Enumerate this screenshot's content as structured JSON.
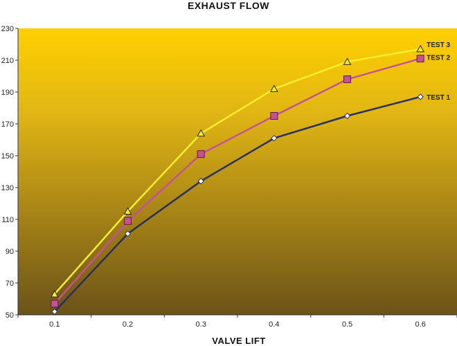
{
  "chart_data": {
    "type": "line",
    "title": "EXHAUST FLOW",
    "xlabel": "VALVE LIFT",
    "ylabel": "",
    "x": [
      0.1,
      0.2,
      0.3,
      0.4,
      0.5,
      0.6
    ],
    "x_ticks": [
      "0.1",
      "0.2",
      "0.3",
      "0.4",
      "0.5",
      "0.6"
    ],
    "ylim": [
      50,
      230
    ],
    "y_ticks": [
      "50",
      "70",
      "90",
      "110",
      "130",
      "150",
      "170",
      "190",
      "210",
      "230"
    ],
    "grid": false,
    "legend": "labels at line ends",
    "series": [
      {
        "name": "TEST 1",
        "values": [
          52,
          101,
          134,
          161,
          175,
          187
        ],
        "color": "#27305a",
        "marker": "diamond"
      },
      {
        "name": "TEST 2",
        "values": [
          57,
          109,
          151,
          175,
          198,
          211
        ],
        "color": "#c5519a",
        "marker": "square"
      },
      {
        "name": "TEST 3",
        "values": [
          63,
          115,
          164,
          192,
          209,
          217
        ],
        "color": "#f6ef2e",
        "marker": "triangle"
      }
    ],
    "colors": {
      "plot_top": "#ffd000",
      "plot_mid": "#e0b514",
      "plot_bottom": "#6b5218"
    }
  }
}
